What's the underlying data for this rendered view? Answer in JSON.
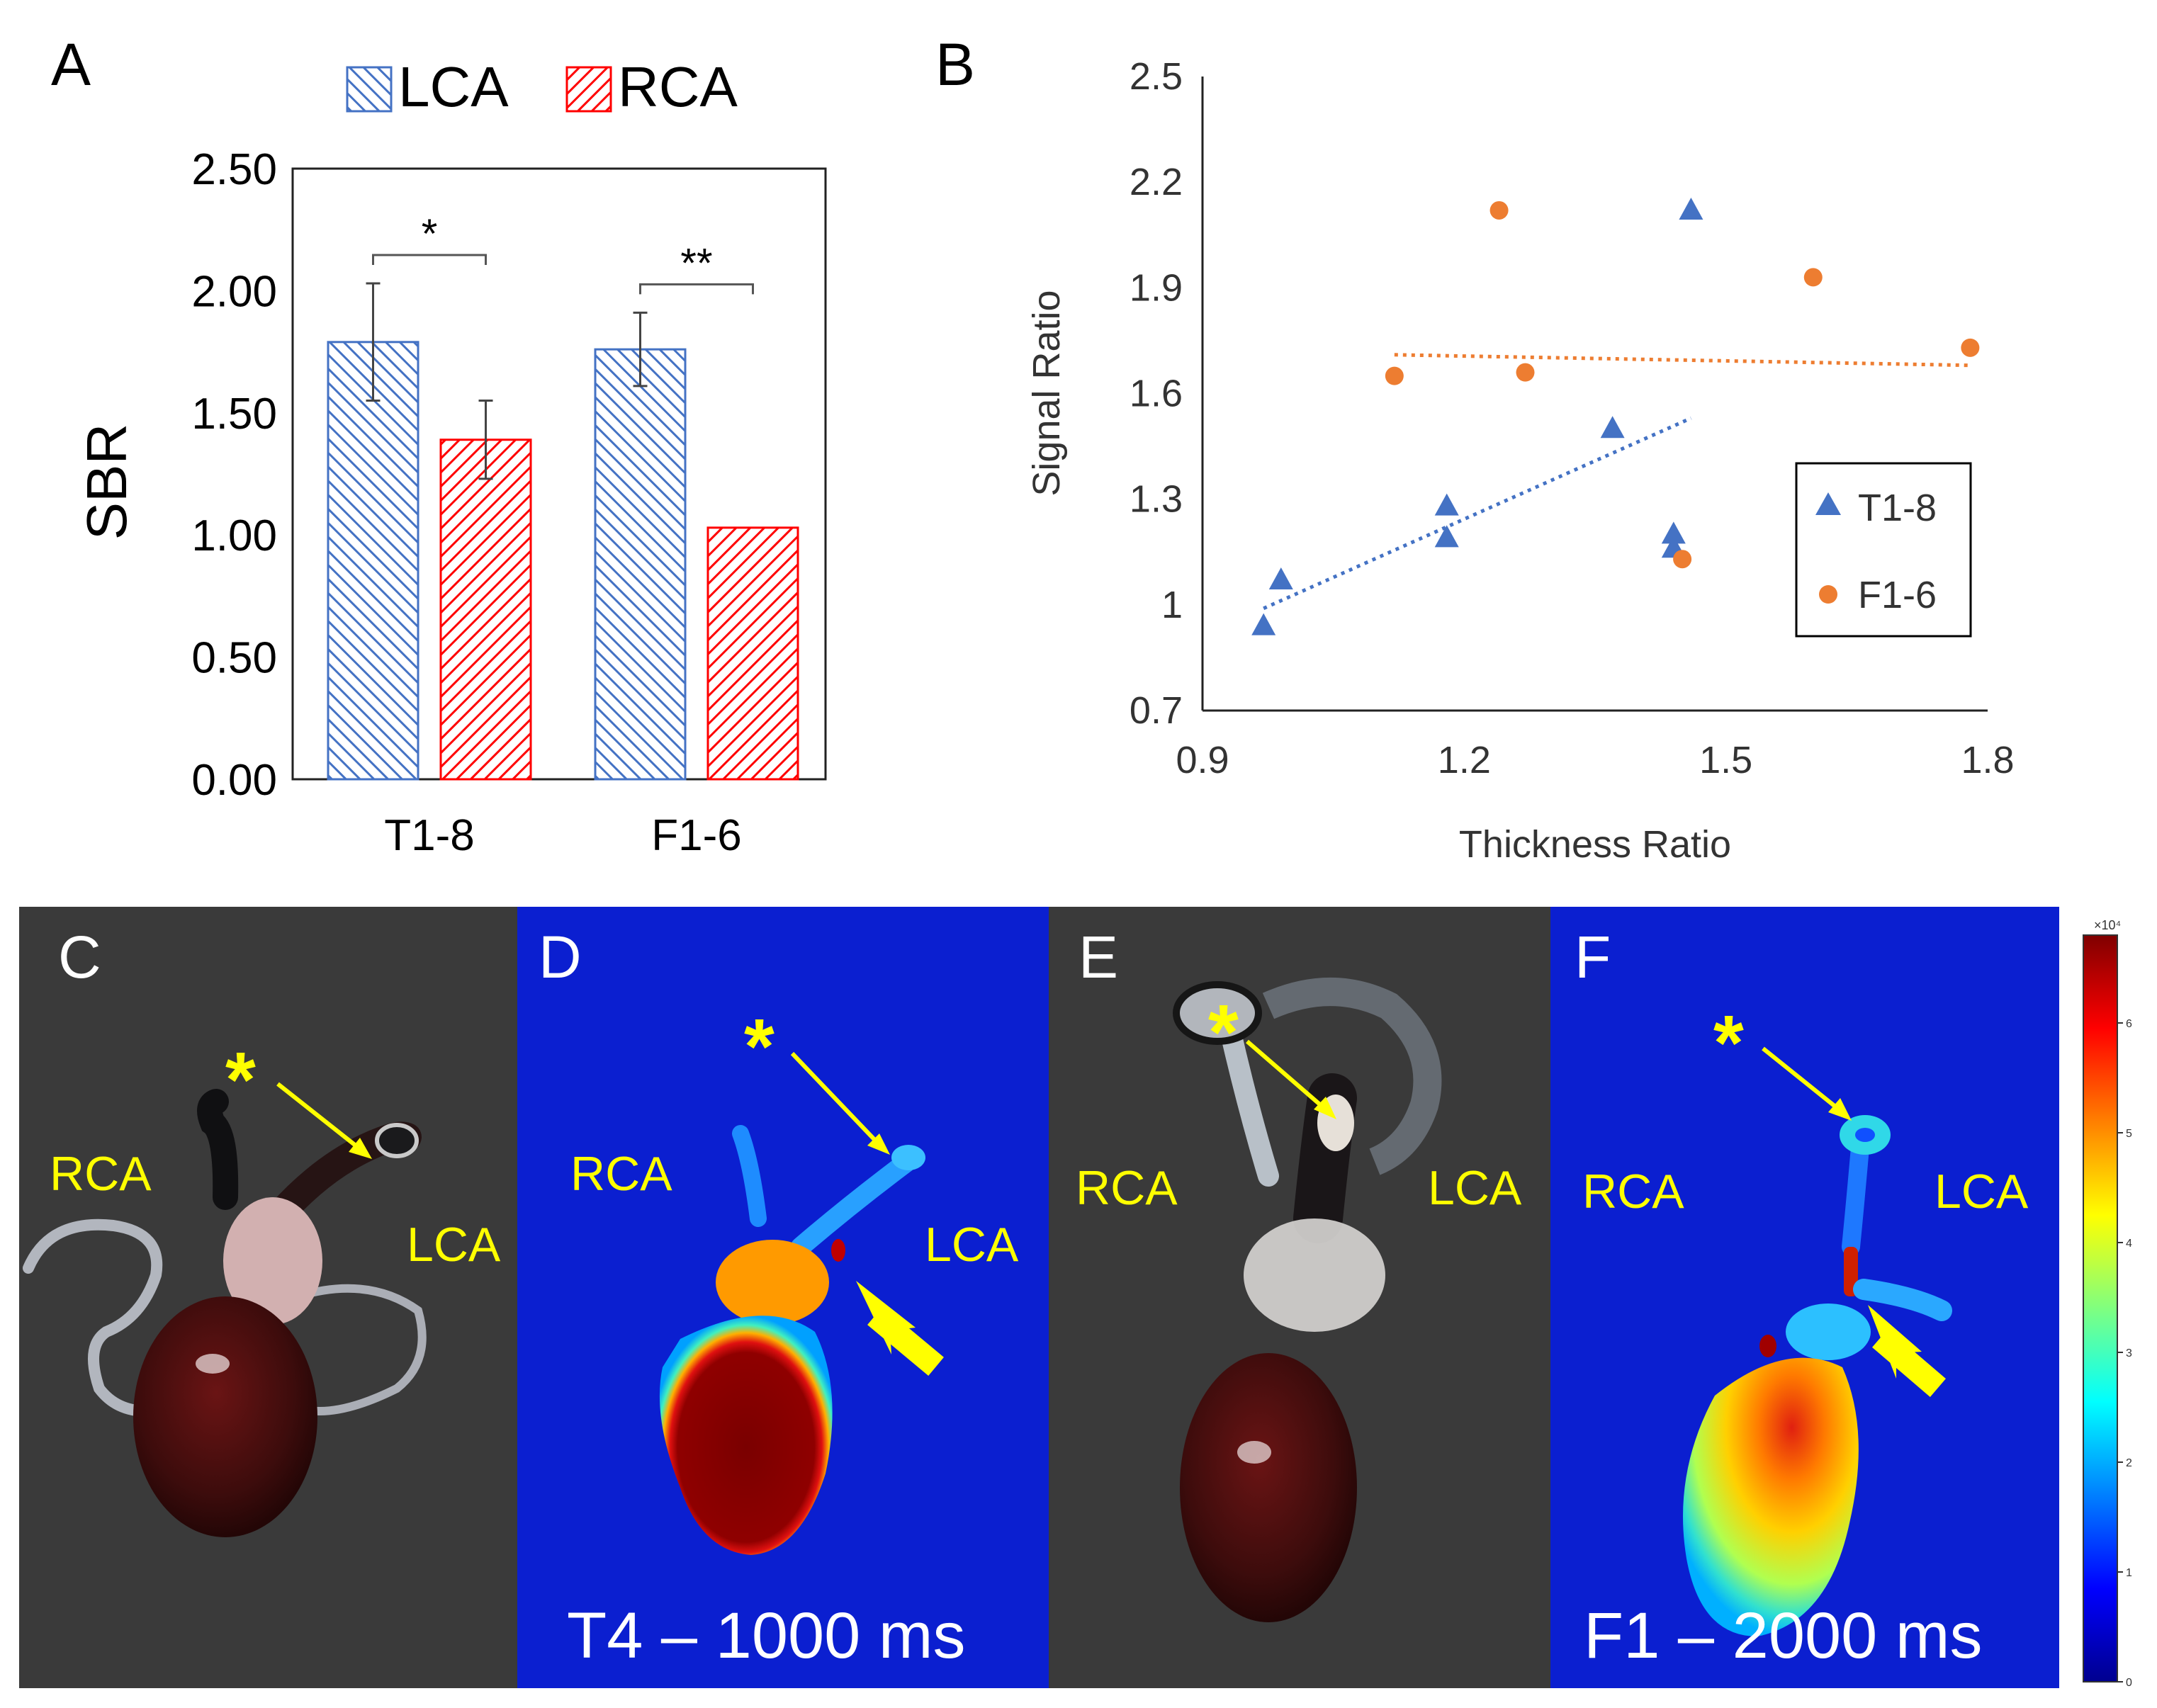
{
  "figure": {
    "panel_labels": {
      "a": "A",
      "b": "B",
      "c": "C",
      "d": "D",
      "e": "E",
      "f": "F"
    },
    "photo_labels": {
      "rca": "RCA",
      "lca": "LCA",
      "asterisk": "*"
    },
    "captions": {
      "d": "T4 – 1000 ms",
      "f": "F1 – 2000 ms"
    },
    "colorbar": {
      "exponent": "×10⁴",
      "ticks": [
        "0",
        "1",
        "2",
        "3",
        "4",
        "5",
        "6"
      ],
      "max": 6.8
    },
    "colors": {
      "lca": "#4472c4",
      "rca": "#ff0000",
      "t_series": "#4472c4",
      "f_series": "#ed7d31",
      "fluor_bg": "#0b1fd0",
      "label_yellow": "#ffff00",
      "photo_bg": "#3a3a3a"
    }
  },
  "chart_data": [
    {
      "type": "bar",
      "panel": "A",
      "title": "",
      "categories": [
        "T1-8",
        "F1-6"
      ],
      "series": [
        {
          "name": "LCA",
          "values": [
            1.79,
            1.76
          ],
          "errors": [
            0.24,
            0.15
          ]
        },
        {
          "name": "RCA",
          "values": [
            1.39,
            1.03
          ],
          "errors": [
            0.16,
            0.0
          ]
        }
      ],
      "ylabel": "SBR",
      "xlabel": "",
      "ylim": [
        0,
        2.5
      ],
      "yticks": [
        "0.00",
        "0.50",
        "1.00",
        "1.50",
        "2.00",
        "2.50"
      ],
      "yticks_values": [
        0,
        0.5,
        1,
        1.5,
        2,
        2.5
      ],
      "legend": "top",
      "significance": [
        {
          "category": "T1-8",
          "label": "*"
        },
        {
          "category": "F1-6",
          "label": "**"
        }
      ]
    },
    {
      "type": "scatter",
      "panel": "B",
      "title": "",
      "xlabel": "Thickness Ratio",
      "ylabel": "Signal Ratio",
      "xlim": [
        0.9,
        1.8
      ],
      "ylim": [
        0.7,
        2.5
      ],
      "xticks": [
        "0.9",
        "1.2",
        "1.5",
        "1.8"
      ],
      "xticks_values": [
        0.9,
        1.2,
        1.5,
        1.8
      ],
      "yticks": [
        "0.7",
        "1",
        "1.3",
        "1.6",
        "1.9",
        "2.2",
        "2.5"
      ],
      "yticks_values": [
        0.7,
        1.0,
        1.3,
        1.6,
        1.9,
        2.2,
        2.5
      ],
      "legend": "right",
      "series": [
        {
          "name": "T1-8",
          "marker": "triangle",
          "points": [
            [
              0.97,
              0.94
            ],
            [
              0.99,
              1.07
            ],
            [
              1.18,
              1.28
            ],
            [
              1.18,
              1.19
            ],
            [
              1.37,
              1.5
            ],
            [
              1.44,
              1.2
            ],
            [
              1.44,
              1.16
            ],
            [
              1.46,
              2.12
            ]
          ],
          "trend": [
            [
              0.97,
              0.99
            ],
            [
              1.46,
              1.53
            ]
          ]
        },
        {
          "name": "F1-6",
          "marker": "circle",
          "points": [
            [
              1.12,
              1.65
            ],
            [
              1.24,
              2.12
            ],
            [
              1.27,
              1.66
            ],
            [
              1.45,
              1.13
            ],
            [
              1.6,
              1.93
            ],
            [
              1.78,
              1.73
            ]
          ],
          "trend": [
            [
              1.12,
              1.71
            ],
            [
              1.78,
              1.68
            ]
          ]
        }
      ]
    }
  ]
}
